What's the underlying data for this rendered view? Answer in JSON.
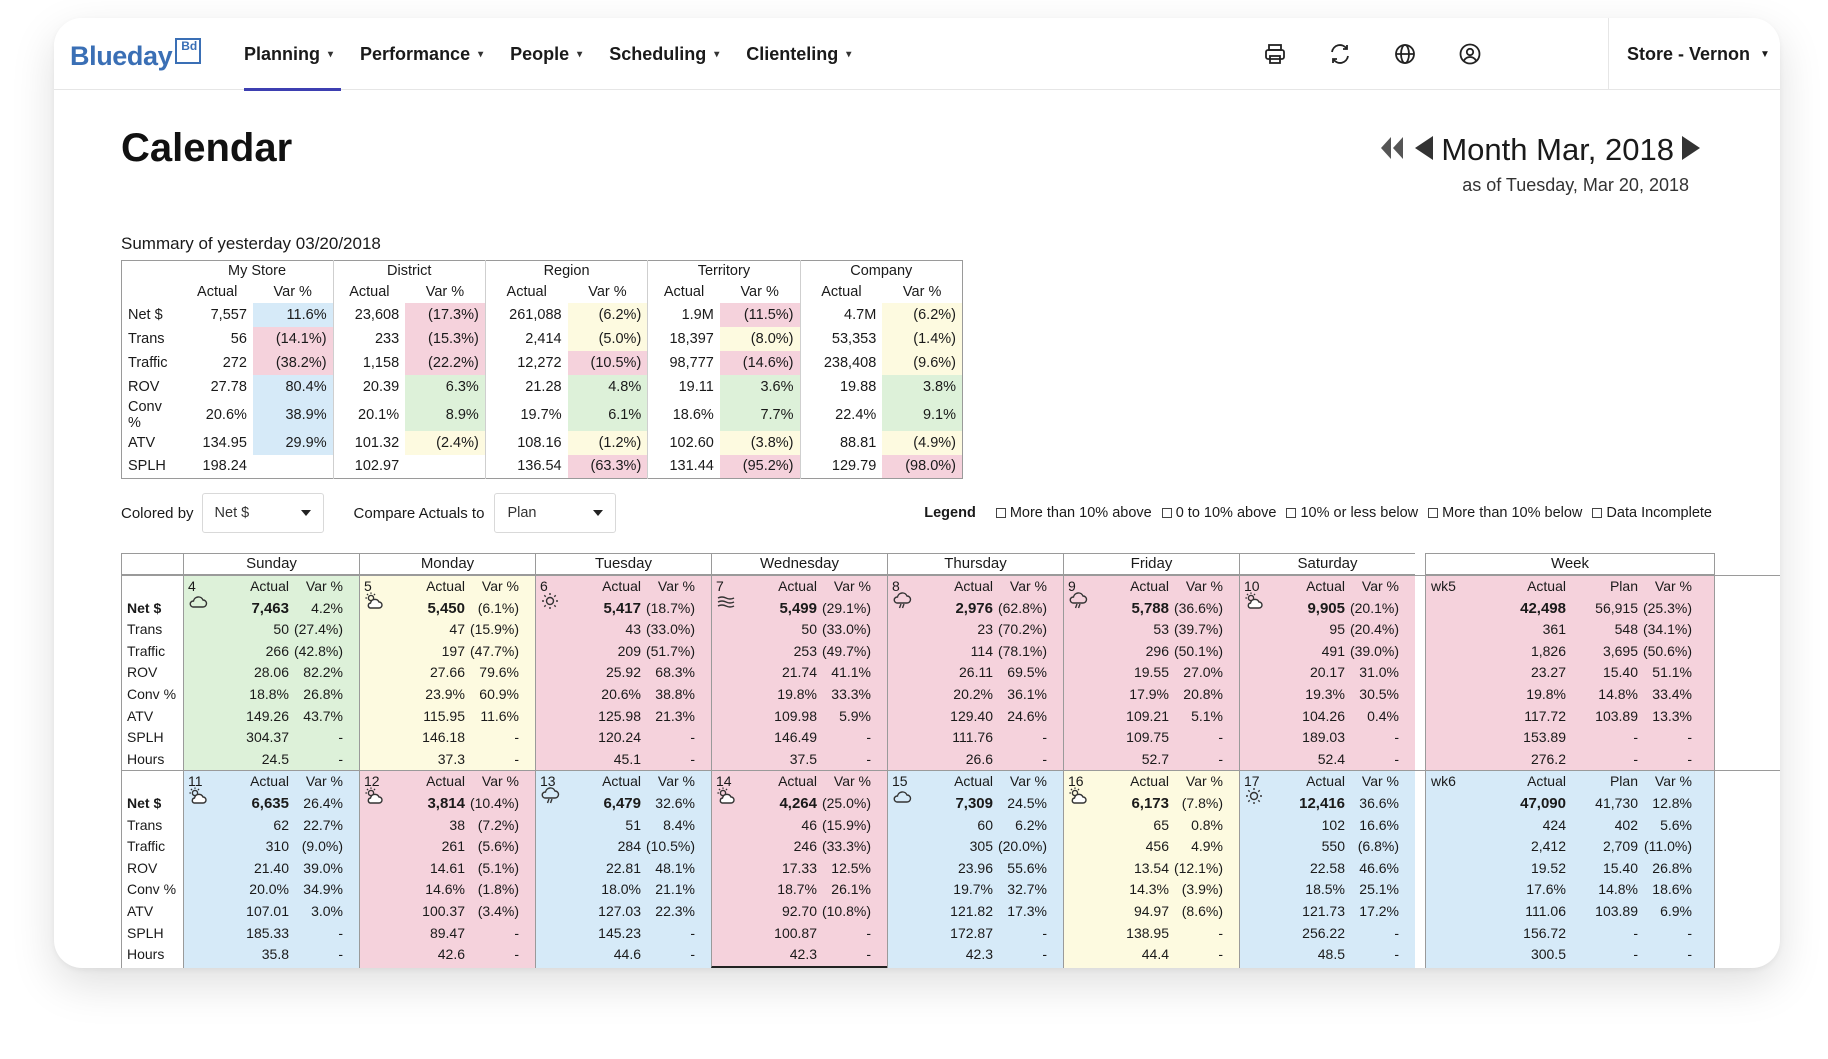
{
  "app": {
    "logo_text": "Blueday",
    "logo_badge": "Bd"
  },
  "nav": {
    "items": [
      "Planning",
      "Performance",
      "People",
      "Scheduling",
      "Clienteling"
    ],
    "active": 0,
    "icons": [
      "printer-icon",
      "refresh-icon",
      "globe-icon",
      "user-icon"
    ],
    "store": "Store - Vernon"
  },
  "header": {
    "title": "Calendar",
    "month": "Month Mar, 2018",
    "as_of": "as of Tuesday, Mar 20, 2018"
  },
  "summary": {
    "caption": "Summary of yesterday 03/20/2018",
    "groups": [
      "My Store",
      "District",
      "Region",
      "Territory",
      "Company"
    ],
    "subheaders": [
      "Actual",
      "Var %"
    ],
    "rows": [
      {
        "label": "Net $",
        "cells": [
          [
            "7,557",
            "11.6%",
            "b"
          ],
          [
            "23,608",
            "(17.3%)",
            "r"
          ],
          [
            "261,088",
            "(6.2%)",
            "y"
          ],
          [
            "1.9M",
            "(11.5%)",
            "r"
          ],
          [
            "4.7M",
            "(6.2%)",
            "y"
          ]
        ]
      },
      {
        "label": "Trans",
        "cells": [
          [
            "56",
            "(14.1%)",
            "r"
          ],
          [
            "233",
            "(15.3%)",
            "r"
          ],
          [
            "2,414",
            "(5.0%)",
            "y"
          ],
          [
            "18,397",
            "(8.0%)",
            "y"
          ],
          [
            "53,353",
            "(1.4%)",
            "y"
          ]
        ]
      },
      {
        "label": "Traffic",
        "cells": [
          [
            "272",
            "(38.2%)",
            "r"
          ],
          [
            "1,158",
            "(22.2%)",
            "r"
          ],
          [
            "12,272",
            "(10.5%)",
            "r"
          ],
          [
            "98,777",
            "(14.6%)",
            "r"
          ],
          [
            "238,408",
            "(9.6%)",
            "y"
          ]
        ]
      },
      {
        "label": "ROV",
        "cells": [
          [
            "27.78",
            "80.4%",
            "b"
          ],
          [
            "20.39",
            "6.3%",
            "g"
          ],
          [
            "21.28",
            "4.8%",
            "g"
          ],
          [
            "19.11",
            "3.6%",
            "g"
          ],
          [
            "19.88",
            "3.8%",
            "g"
          ]
        ]
      },
      {
        "label": "Conv %",
        "cells": [
          [
            "20.6%",
            "38.9%",
            "b"
          ],
          [
            "20.1%",
            "8.9%",
            "g"
          ],
          [
            "19.7%",
            "6.1%",
            "g"
          ],
          [
            "18.6%",
            "7.7%",
            "g"
          ],
          [
            "22.4%",
            "9.1%",
            "g"
          ]
        ]
      },
      {
        "label": "ATV",
        "cells": [
          [
            "134.95",
            "29.9%",
            "b"
          ],
          [
            "101.32",
            "(2.4%)",
            "y"
          ],
          [
            "108.16",
            "(1.2%)",
            "y"
          ],
          [
            "102.60",
            "(3.8%)",
            "y"
          ],
          [
            "88.81",
            "(4.9%)",
            "y"
          ]
        ]
      },
      {
        "label": "SPLH",
        "cells": [
          [
            "198.24",
            "",
            "w"
          ],
          [
            "102.97",
            "",
            "w"
          ],
          [
            "136.54",
            "(63.3%)",
            "r"
          ],
          [
            "131.44",
            "(95.2%)",
            "r"
          ],
          [
            "129.79",
            "(98.0%)",
            "r"
          ]
        ]
      }
    ]
  },
  "controls": {
    "colored_by_label": "Colored by",
    "colored_by_value": "Net $",
    "compare_label": "Compare Actuals to",
    "compare_value": "Plan"
  },
  "legend": {
    "title": "Legend",
    "items": [
      "More than 10% above",
      "0 to 10% above",
      "10% or less below",
      "More than 10% below",
      "Data Incomplete"
    ]
  },
  "colors": {
    "b": "#d6eaf8",
    "g": "#ddf1d9",
    "y": "#fdfae0",
    "r": "#f5d2dc",
    "w": "#ffffff"
  },
  "calendar": {
    "days": [
      "Sunday",
      "Monday",
      "Tuesday",
      "Wednesday",
      "Thursday",
      "Friday",
      "Saturday"
    ],
    "week_label": "Week",
    "row_labels": [
      "Net $",
      "Trans",
      "Traffic",
      "ROV",
      "Conv %",
      "ATV",
      "SPLH",
      "Hours"
    ],
    "col_actual": "Actual",
    "col_var": "Var %",
    "col_plan": "Plan",
    "weeks": [
      {
        "wk": "wk5",
        "color": "r",
        "days": [
          {
            "date": "4",
            "icon": "cloud-icon",
            "color": "g",
            "rows": [
              [
                "7,463",
                "4.2%"
              ],
              [
                "50",
                "(27.4%)"
              ],
              [
                "266",
                "(42.8%)"
              ],
              [
                "28.06",
                "82.2%"
              ],
              [
                "18.8%",
                "26.8%"
              ],
              [
                "149.26",
                "43.7%"
              ],
              [
                "304.37",
                "-"
              ],
              [
                "24.5",
                "-"
              ]
            ]
          },
          {
            "date": "5",
            "icon": "partly-cloudy-icon",
            "color": "y",
            "rows": [
              [
                "5,450",
                "(6.1%)"
              ],
              [
                "47",
                "(15.9%)"
              ],
              [
                "197",
                "(47.7%)"
              ],
              [
                "27.66",
                "79.6%"
              ],
              [
                "23.9%",
                "60.9%"
              ],
              [
                "115.95",
                "11.6%"
              ],
              [
                "146.18",
                "-"
              ],
              [
                "37.3",
                "-"
              ]
            ]
          },
          {
            "date": "6",
            "icon": "sun-icon",
            "color": "r",
            "rows": [
              [
                "5,417",
                "(18.7%)"
              ],
              [
                "43",
                "(33.0%)"
              ],
              [
                "209",
                "(51.7%)"
              ],
              [
                "25.92",
                "68.3%"
              ],
              [
                "20.6%",
                "38.8%"
              ],
              [
                "125.98",
                "21.3%"
              ],
              [
                "120.24",
                "-"
              ],
              [
                "45.1",
                "-"
              ]
            ]
          },
          {
            "date": "7",
            "icon": "fog-icon",
            "color": "r",
            "rows": [
              [
                "5,499",
                "(29.1%)"
              ],
              [
                "50",
                "(33.0%)"
              ],
              [
                "253",
                "(49.7%)"
              ],
              [
                "21.74",
                "41.1%"
              ],
              [
                "19.8%",
                "33.3%"
              ],
              [
                "109.98",
                "5.9%"
              ],
              [
                "146.49",
                "-"
              ],
              [
                "37.5",
                "-"
              ]
            ]
          },
          {
            "date": "8",
            "icon": "rain-cloud-icon",
            "color": "r",
            "rows": [
              [
                "2,976",
                "(62.8%)"
              ],
              [
                "23",
                "(70.2%)"
              ],
              [
                "114",
                "(78.1%)"
              ],
              [
                "26.11",
                "69.5%"
              ],
              [
                "20.2%",
                "36.1%"
              ],
              [
                "129.40",
                "24.6%"
              ],
              [
                "111.76",
                "-"
              ],
              [
                "26.6",
                "-"
              ]
            ]
          },
          {
            "date": "9",
            "icon": "rain-cloud-icon",
            "color": "r",
            "rows": [
              [
                "5,788",
                "(36.6%)"
              ],
              [
                "53",
                "(39.7%)"
              ],
              [
                "296",
                "(50.1%)"
              ],
              [
                "19.55",
                "27.0%"
              ],
              [
                "17.9%",
                "20.8%"
              ],
              [
                "109.21",
                "5.1%"
              ],
              [
                "109.75",
                "-"
              ],
              [
                "52.7",
                "-"
              ]
            ]
          },
          {
            "date": "10",
            "icon": "partly-cloudy-icon",
            "color": "r",
            "rows": [
              [
                "9,905",
                "(20.1%)"
              ],
              [
                "95",
                "(20.4%)"
              ],
              [
                "491",
                "(39.0%)"
              ],
              [
                "20.17",
                "31.0%"
              ],
              [
                "19.3%",
                "30.5%"
              ],
              [
                "104.26",
                "0.4%"
              ],
              [
                "189.03",
                "-"
              ],
              [
                "52.4",
                "-"
              ]
            ]
          }
        ],
        "totals": [
          [
            "42,498",
            "56,915",
            "(25.3%)"
          ],
          [
            "361",
            "548",
            "(34.1%)"
          ],
          [
            "1,826",
            "3,695",
            "(50.6%)"
          ],
          [
            "23.27",
            "15.40",
            "51.1%"
          ],
          [
            "19.8%",
            "14.8%",
            "33.4%"
          ],
          [
            "117.72",
            "103.89",
            "13.3%"
          ],
          [
            "153.89",
            "-",
            "-"
          ],
          [
            "276.2",
            "-",
            "-"
          ]
        ]
      },
      {
        "wk": "wk6",
        "color": "b",
        "days": [
          {
            "date": "11",
            "icon": "partly-cloudy-icon",
            "color": "b",
            "rows": [
              [
                "6,635",
                "26.4%"
              ],
              [
                "62",
                "22.7%"
              ],
              [
                "310",
                "(9.0%)"
              ],
              [
                "21.40",
                "39.0%"
              ],
              [
                "20.0%",
                "34.9%"
              ],
              [
                "107.01",
                "3.0%"
              ],
              [
                "185.33",
                "-"
              ],
              [
                "35.8",
                "-"
              ]
            ]
          },
          {
            "date": "12",
            "icon": "partly-cloudy-icon",
            "color": "r",
            "rows": [
              [
                "3,814",
                "(10.4%)"
              ],
              [
                "38",
                "(7.2%)"
              ],
              [
                "261",
                "(5.6%)"
              ],
              [
                "14.61",
                "(5.1%)"
              ],
              [
                "14.6%",
                "(1.8%)"
              ],
              [
                "100.37",
                "(3.4%)"
              ],
              [
                "89.47",
                "-"
              ],
              [
                "42.6",
                "-"
              ]
            ]
          },
          {
            "date": "13",
            "icon": "rain-cloud-icon",
            "color": "b",
            "rows": [
              [
                "6,479",
                "32.6%"
              ],
              [
                "51",
                "8.4%"
              ],
              [
                "284",
                "(10.5%)"
              ],
              [
                "22.81",
                "48.1%"
              ],
              [
                "18.0%",
                "21.1%"
              ],
              [
                "127.03",
                "22.3%"
              ],
              [
                "145.23",
                "-"
              ],
              [
                "44.6",
                "-"
              ]
            ]
          },
          {
            "date": "14",
            "icon": "partly-cloudy-icon",
            "color": "r",
            "rows": [
              [
                "4,264",
                "(25.0%)"
              ],
              [
                "46",
                "(15.9%)"
              ],
              [
                "246",
                "(33.3%)"
              ],
              [
                "17.33",
                "12.5%"
              ],
              [
                "18.7%",
                "26.1%"
              ],
              [
                "92.70",
                "(10.8%)"
              ],
              [
                "100.87",
                "-"
              ],
              [
                "42.3",
                "-"
              ]
            ]
          },
          {
            "date": "15",
            "icon": "cloud-icon",
            "color": "b",
            "rows": [
              [
                "7,309",
                "24.5%"
              ],
              [
                "60",
                "6.2%"
              ],
              [
                "305",
                "(20.0%)"
              ],
              [
                "23.96",
                "55.6%"
              ],
              [
                "19.7%",
                "32.7%"
              ],
              [
                "121.82",
                "17.3%"
              ],
              [
                "172.87",
                "-"
              ],
              [
                "42.3",
                "-"
              ]
            ]
          },
          {
            "date": "16",
            "icon": "partly-cloudy-icon",
            "color": "y",
            "rows": [
              [
                "6,173",
                "(7.8%)"
              ],
              [
                "65",
                "0.8%"
              ],
              [
                "456",
                "4.9%"
              ],
              [
                "13.54",
                "(12.1%)"
              ],
              [
                "14.3%",
                "(3.9%)"
              ],
              [
                "94.97",
                "(8.6%)"
              ],
              [
                "138.95",
                "-"
              ],
              [
                "44.4",
                "-"
              ]
            ]
          },
          {
            "date": "17",
            "icon": "sun-icon",
            "color": "b",
            "rows": [
              [
                "12,416",
                "36.6%"
              ],
              [
                "102",
                "16.6%"
              ],
              [
                "550",
                "(6.8%)"
              ],
              [
                "22.58",
                "46.6%"
              ],
              [
                "18.5%",
                "25.1%"
              ],
              [
                "121.73",
                "17.2%"
              ],
              [
                "256.22",
                "-"
              ],
              [
                "48.5",
                "-"
              ]
            ]
          }
        ],
        "totals": [
          [
            "47,090",
            "41,730",
            "12.8%"
          ],
          [
            "424",
            "402",
            "5.6%"
          ],
          [
            "2,412",
            "2,709",
            "(11.0%)"
          ],
          [
            "19.52",
            "15.40",
            "26.8%"
          ],
          [
            "17.6%",
            "14.8%",
            "18.6%"
          ],
          [
            "111.06",
            "103.89",
            "6.9%"
          ],
          [
            "156.72",
            "-",
            "-"
          ],
          [
            "300.5",
            "-",
            "-"
          ]
        ]
      }
    ]
  }
}
